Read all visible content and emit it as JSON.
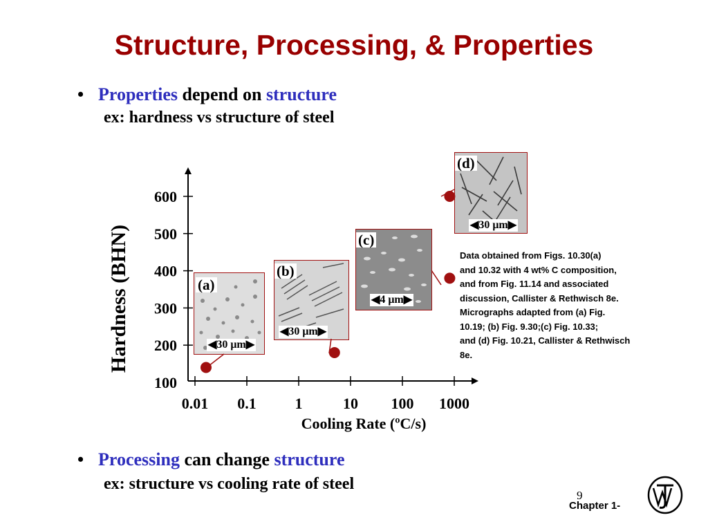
{
  "title": "Structure, Processing, & Properties",
  "bullet1": {
    "a": "Properties",
    "b": " depend on ",
    "c": "structure",
    "sub": "ex:  hardness vs structure of steel"
  },
  "bullet2": {
    "a": "Processing",
    "b": " can change ",
    "c": "structure",
    "sub": "ex:  structure vs cooling rate of steel"
  },
  "bullet_char": "•",
  "micrographs": [
    {
      "label": "(a)",
      "scale": "30 μm"
    },
    {
      "label": "(b)",
      "scale": "30 μm"
    },
    {
      "label": "(c)",
      "scale": "4 μm"
    },
    {
      "label": "(d)",
      "scale": "30 μm"
    }
  ],
  "note_lines": [
    "Data obtained from Figs. 10.30(a)",
    "and 10.32 with 4 wt% C composition,",
    "and from Fig. 11.14 and associated",
    "discussion, Callister & Rethwisch 8e.",
    "Micrographs adapted from (a) Fig.",
    "10.19; (b) Fig. 9.30;(c) Fig. 10.33;",
    "and (d) Fig. 10.21, Callister & Rethwisch",
    "8e."
  ],
  "page_number": "9",
  "chapter": "Chapter 1-",
  "colors": {
    "title": "#990000",
    "highlight": "#2e2ebd",
    "marker": "#a01010",
    "frame": "#a01010"
  },
  "chart_data": {
    "type": "scatter",
    "xlabel": "Cooling Rate (ºC/s)",
    "ylabel": "Hardness (BHN)",
    "x_scale": "log",
    "x_ticks": [
      "0.01",
      "0.1",
      "1",
      "10",
      "100",
      "1000"
    ],
    "x_tick_values": [
      0.01,
      0.1,
      1,
      10,
      100,
      1000
    ],
    "y_ticks": [
      "100",
      "200",
      "300",
      "400",
      "500",
      "600"
    ],
    "y_tick_values": [
      100,
      200,
      300,
      400,
      500,
      600
    ],
    "xlim": [
      0.01,
      1000
    ],
    "ylim": [
      100,
      600
    ],
    "points": [
      {
        "label": "(a)",
        "x": 0.01,
        "y": 140
      },
      {
        "label": "(b)",
        "x": 3,
        "y": 180
      },
      {
        "label": "(c)",
        "x": 500,
        "y": 380
      },
      {
        "label": "(d)",
        "x": 500,
        "y": 600
      }
    ]
  }
}
